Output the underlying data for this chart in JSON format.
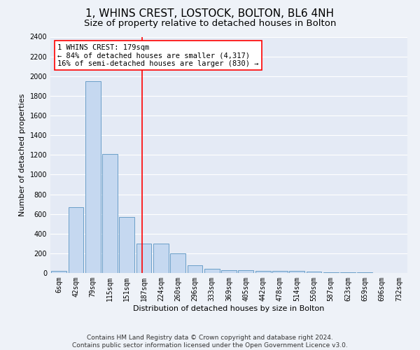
{
  "title": "1, WHINS CREST, LOSTOCK, BOLTON, BL6 4NH",
  "subtitle": "Size of property relative to detached houses in Bolton",
  "xlabel": "Distribution of detached houses by size in Bolton",
  "ylabel": "Number of detached properties",
  "annotation_line1": "1 WHINS CREST: 179sqm",
  "annotation_line2": "← 84% of detached houses are smaller (4,317)",
  "annotation_line3": "16% of semi-detached houses are larger (830) →",
  "footer_line1": "Contains HM Land Registry data © Crown copyright and database right 2024.",
  "footer_line2": "Contains public sector information licensed under the Open Government Licence v3.0.",
  "bins": [
    "6sqm",
    "42sqm",
    "79sqm",
    "115sqm",
    "151sqm",
    "187sqm",
    "224sqm",
    "260sqm",
    "296sqm",
    "333sqm",
    "369sqm",
    "405sqm",
    "442sqm",
    "478sqm",
    "514sqm",
    "550sqm",
    "587sqm",
    "623sqm",
    "659sqm",
    "696sqm",
    "732sqm"
  ],
  "values": [
    20,
    670,
    1950,
    1210,
    570,
    300,
    300,
    200,
    75,
    42,
    32,
    26,
    22,
    22,
    20,
    15,
    10,
    8,
    5,
    3,
    2
  ],
  "bar_color": "#c5d8f0",
  "bar_edge_color": "#6a9ec8",
  "red_line_x": 4.9,
  "ylim": [
    0,
    2400
  ],
  "yticks": [
    0,
    200,
    400,
    600,
    800,
    1000,
    1200,
    1400,
    1600,
    1800,
    2000,
    2200,
    2400
  ],
  "bg_color": "#eef2f8",
  "plot_bg_color": "#e4eaf5",
  "title_fontsize": 11,
  "subtitle_fontsize": 9.5,
  "axis_label_fontsize": 8,
  "tick_fontsize": 7,
  "annotation_fontsize": 7.5,
  "footer_fontsize": 6.5
}
